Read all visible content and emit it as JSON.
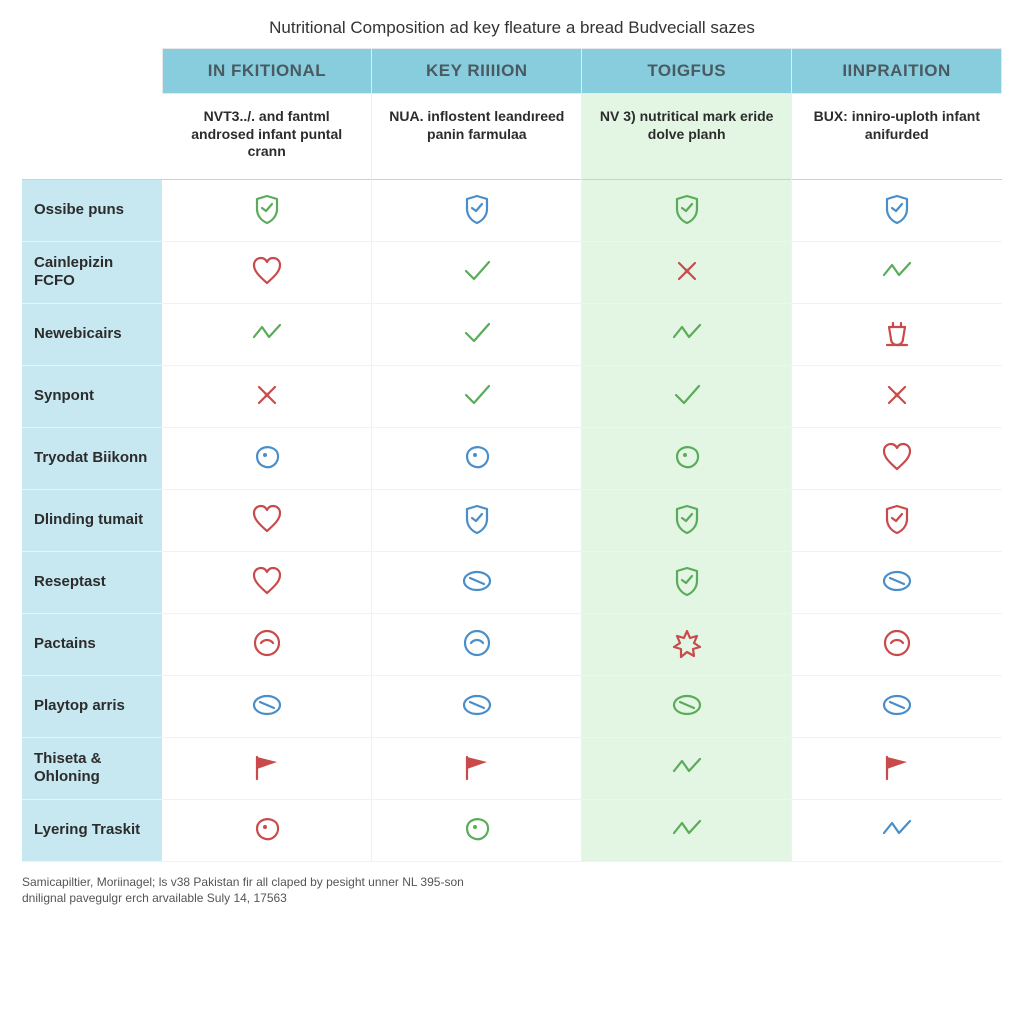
{
  "colors": {
    "header_bg": "#87cddd",
    "rowhead_bg": "#c7e8f0",
    "highlight_bg": "#e3f6e3",
    "icon_green": "#5aab5a",
    "icon_red": "#c94a4a",
    "icon_blue": "#4a8ec9",
    "grid": "#e8e8e8"
  },
  "title": "Nutritional Composition ad key fleature a bread Budveciall sazes",
  "columns": [
    {
      "header": "IN FKITIONAL",
      "sub": "NVT3../. and fantml androsed infant puntal crann",
      "highlight": false
    },
    {
      "header": "KEY RIIIION",
      "sub": "NUA. inflostent leandıreed panin farmulaa",
      "highlight": false
    },
    {
      "header": "TOIGFUS",
      "sub": "NV 3) nutritical mark eride dolve planh",
      "highlight": true
    },
    {
      "header": "IINPRAITION",
      "sub": "BUX: inniro-uploth infant anifurded",
      "highlight": false
    }
  ],
  "row_labels": [
    "Ossibe puns",
    "Cainlepizin FCFO",
    "Newebicairs",
    "Synpont",
    "Tryodat Biikonn",
    "Dlinding tumait",
    "Reseptast",
    "Pactains",
    "Playtop arris",
    "Thiseta & Ohloning",
    "Lyering Traskit"
  ],
  "icon_grid": [
    [
      "shield-green",
      "shield-blue",
      "shield-green",
      "shield-blue"
    ],
    [
      "heart-red",
      "check-green",
      "cross-red",
      "zig-green"
    ],
    [
      "zig-green",
      "check-green",
      "zig-green",
      "cup-red"
    ],
    [
      "cross-red",
      "check-green",
      "check-green",
      "cross-red"
    ],
    [
      "blob-blue",
      "blob-blue",
      "blob-green",
      "heart-red"
    ],
    [
      "heart-red",
      "shield-blue",
      "shield-green",
      "shield-red"
    ],
    [
      "heart-red",
      "pill-blue",
      "shield-green",
      "pill-blue"
    ],
    [
      "circ-red",
      "circ-blue",
      "burst-red",
      "circ-red"
    ],
    [
      "pill-blue",
      "pill-blue",
      "pill-green",
      "pill-blue"
    ],
    [
      "flag-red",
      "flag-red",
      "zig-green",
      "flag-red"
    ],
    [
      "blob-red",
      "blob-green",
      "zig-green",
      "zig-blue"
    ]
  ],
  "icon_defs": {
    "shield-green": {
      "shape": "shield",
      "color": "icon_green"
    },
    "shield-blue": {
      "shape": "shield",
      "color": "icon_blue"
    },
    "shield-red": {
      "shape": "shield",
      "color": "icon_red"
    },
    "heart-red": {
      "shape": "heart",
      "color": "icon_red"
    },
    "check-green": {
      "shape": "check",
      "color": "icon_green"
    },
    "cross-red": {
      "shape": "cross",
      "color": "icon_red"
    },
    "zig-green": {
      "shape": "zig",
      "color": "icon_green"
    },
    "zig-blue": {
      "shape": "zig",
      "color": "icon_blue"
    },
    "cup-red": {
      "shape": "cup",
      "color": "icon_red"
    },
    "blob-blue": {
      "shape": "blob",
      "color": "icon_blue"
    },
    "blob-green": {
      "shape": "blob",
      "color": "icon_green"
    },
    "blob-red": {
      "shape": "blob",
      "color": "icon_red"
    },
    "pill-blue": {
      "shape": "pill",
      "color": "icon_blue"
    },
    "pill-green": {
      "shape": "pill",
      "color": "icon_green"
    },
    "circ-red": {
      "shape": "circ",
      "color": "icon_red"
    },
    "circ-blue": {
      "shape": "circ",
      "color": "icon_blue"
    },
    "burst-red": {
      "shape": "burst",
      "color": "icon_red"
    },
    "flag-red": {
      "shape": "flag",
      "color": "icon_red"
    }
  },
  "footnote_line1": "Samicapiltier, Moriinagel; ls v38 Pakistan fir all claped by pesight unner NL 395-son",
  "footnote_line2": "dnilignal pavegulgr erch arvailable   Suly 14, 17563"
}
